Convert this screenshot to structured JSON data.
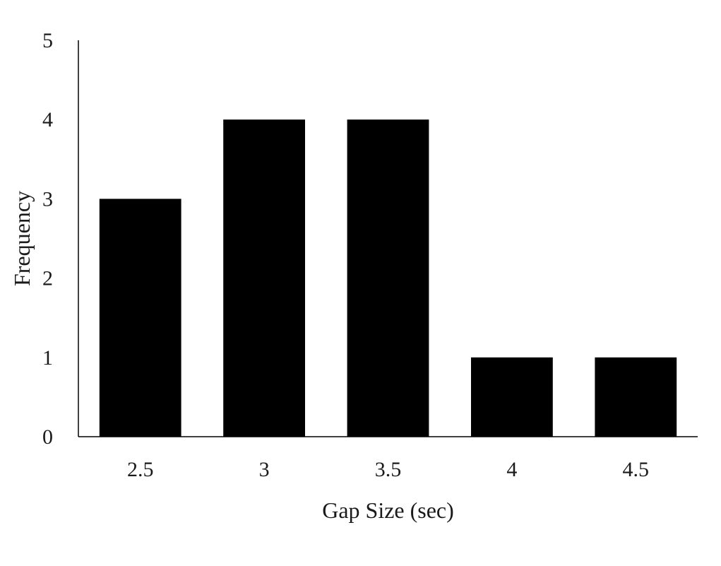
{
  "chart_data": {
    "type": "bar",
    "title": "",
    "xlabel": "Gap Size (sec)",
    "ylabel": "Frequency",
    "categories": [
      "2.5",
      "3",
      "3.5",
      "4",
      "4.5"
    ],
    "values": [
      3,
      4,
      4,
      1,
      1
    ],
    "ylim": [
      0,
      5
    ],
    "yticks": [
      0,
      1,
      2,
      3,
      4,
      5
    ],
    "grid": false,
    "legend": "none",
    "colors": {
      "bar": "#000000",
      "axis": "#000000",
      "text": "#1a1a1a"
    }
  }
}
